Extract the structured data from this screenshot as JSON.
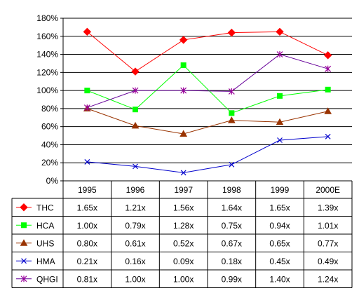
{
  "chart_data": {
    "type": "line",
    "title": "",
    "xlabel": "",
    "ylabel": "",
    "categories": [
      "1995",
      "1996",
      "1997",
      "1998",
      "1999",
      "2000E"
    ],
    "ylim": [
      0,
      180
    ],
    "yticks": [
      "0%",
      "20%",
      "40%",
      "60%",
      "80%",
      "100%",
      "120%",
      "140%",
      "160%",
      "180%"
    ],
    "grid": true,
    "legend": "data-table-left",
    "series": [
      {
        "name": "THC",
        "color": "#ff0000",
        "marker": "diamond",
        "marker_color": "#ff0000",
        "values": [
          165,
          121,
          156,
          164,
          165,
          139
        ],
        "labels": [
          "1.65x",
          "1.21x",
          "1.56x",
          "1.64x",
          "1.65x",
          "1.39x"
        ]
      },
      {
        "name": "HCA",
        "color": "#00ff00",
        "marker": "square",
        "marker_color": "#00ff00",
        "values": [
          100,
          79,
          128,
          75,
          94,
          101
        ],
        "labels": [
          "1.00x",
          "0.79x",
          "1.28x",
          "0.75x",
          "0.94x",
          "1.01x"
        ]
      },
      {
        "name": "UHS",
        "color": "#993300",
        "marker": "triangle",
        "marker_color": "#993300",
        "values": [
          80,
          61,
          52,
          67,
          65,
          77
        ],
        "labels": [
          "0.80x",
          "0.61x",
          "0.52x",
          "0.67x",
          "0.65x",
          "0.77x"
        ]
      },
      {
        "name": "HMA",
        "color": "#0000cc",
        "marker": "x",
        "marker_color": "#0000cc",
        "values": [
          21,
          16,
          9,
          18,
          45,
          49
        ],
        "labels": [
          "0.21x",
          "0.16x",
          "0.09x",
          "0.18x",
          "0.45x",
          "0.49x"
        ]
      },
      {
        "name": "QHGI",
        "color": "#660099",
        "marker": "star",
        "marker_color": "#990099",
        "values": [
          81,
          100,
          100,
          99,
          140,
          124
        ],
        "labels": [
          "0.81x",
          "1.00x",
          "1.00x",
          "0.99x",
          "1.40x",
          "1.24x"
        ]
      }
    ]
  }
}
